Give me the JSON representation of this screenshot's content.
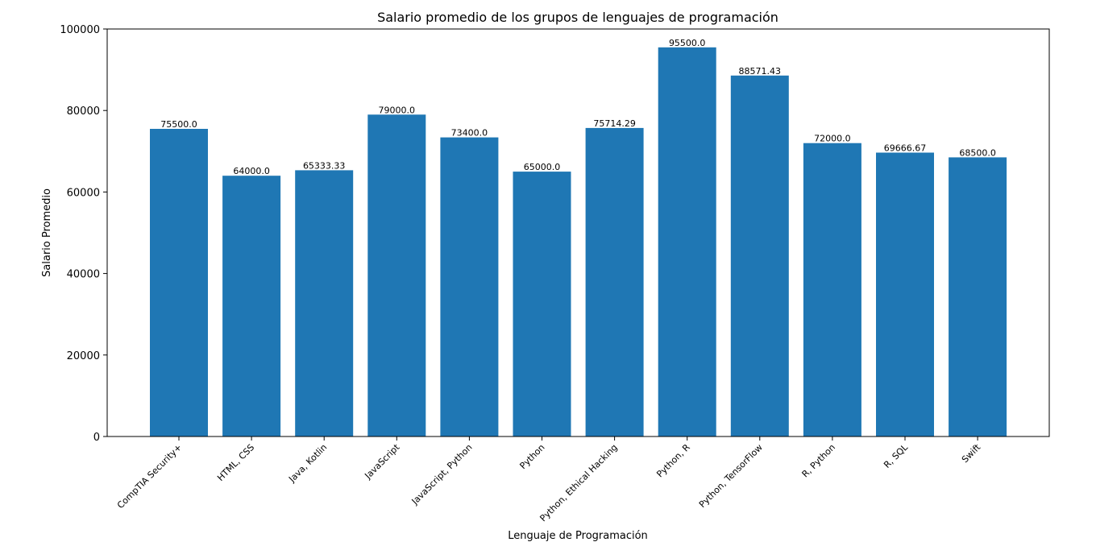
{
  "chart_data": {
    "type": "bar",
    "title": "Salario promedio de los grupos de lenguajes de programación",
    "xlabel": "Lenguaje de Programación",
    "ylabel": "Salario Promedio",
    "ylim": [
      0,
      100000
    ],
    "yticks": [
      0,
      20000,
      40000,
      60000,
      80000,
      100000
    ],
    "categories": [
      "CompTIA Security+",
      "HTML, CSS",
      "Java, Kotlin",
      "JavaScript",
      "JavaScript, Python",
      "Python",
      "Python, Ethical Hacking",
      "Python, R",
      "Python, TensorFlow",
      "R, Python",
      "R, SQL",
      "Swift"
    ],
    "values": [
      75500.0,
      64000.0,
      65333.33,
      79000.0,
      73400.0,
      65000.0,
      75714.29,
      95500.0,
      88571.43,
      72000.0,
      69666.67,
      68500.0
    ],
    "value_labels": [
      "75500.0",
      "64000.0",
      "65333.33",
      "79000.0",
      "73400.0",
      "65000.0",
      "75714.29",
      "95500.0",
      "88571.43",
      "72000.0",
      "69666.67",
      "68500.0"
    ],
    "bar_color": "#1f77b4",
    "grid": false
  }
}
